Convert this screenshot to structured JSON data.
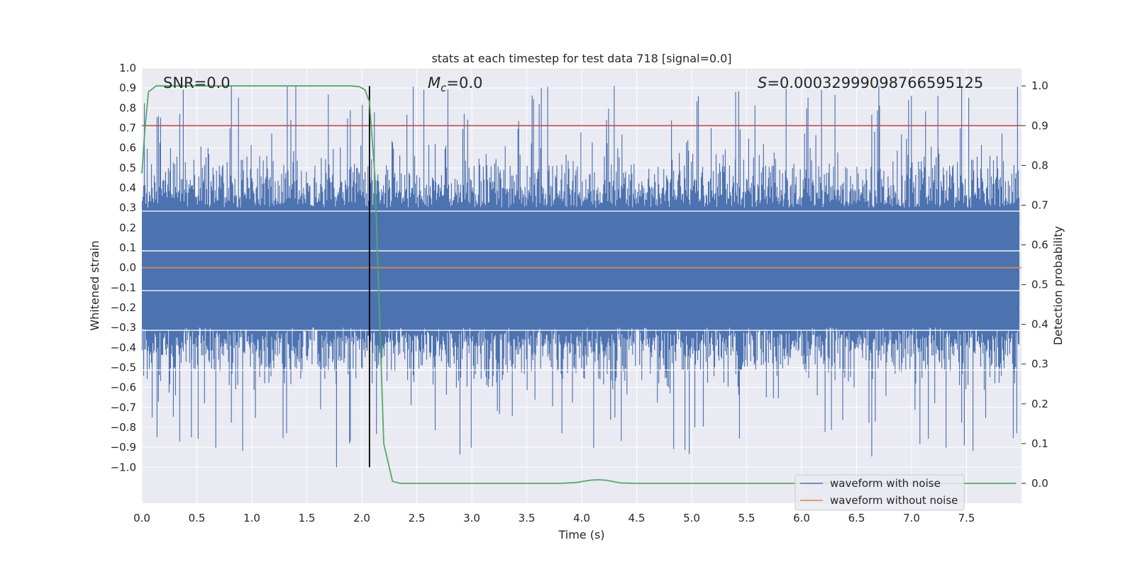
{
  "chart_data": {
    "type": "line",
    "title": "stats at each timestep for test data 718 [signal=0.0]",
    "xlabel": "Time (s)",
    "ylabel": "Whitened strain",
    "ylabel_right": "Detection probability",
    "xlim": [
      0.0,
      8.0
    ],
    "ylim": [
      -1.18,
      1.0
    ],
    "ylim_right": [
      -0.05,
      1.045
    ],
    "x_ticks": [
      "0.0",
      "0.5",
      "1.0",
      "1.5",
      "2.0",
      "2.5",
      "3.0",
      "3.5",
      "4.0",
      "4.5",
      "5.0",
      "5.5",
      "6.0",
      "6.5",
      "7.0",
      "7.5"
    ],
    "y_ticks": [
      "1.0",
      "0.9",
      "0.8",
      "0.7",
      "0.6",
      "0.5",
      "0.4",
      "0.3",
      "0.2",
      "0.1",
      "0.0",
      "−0.1",
      "−0.2",
      "−0.3",
      "−0.4",
      "−0.5",
      "−0.6",
      "−0.7",
      "−0.8",
      "−0.9",
      "−1.0"
    ],
    "y_right_ticks": [
      "1.0",
      "0.9",
      "0.8",
      "0.7",
      "0.6",
      "0.5",
      "0.4",
      "0.3",
      "0.2",
      "0.1",
      "0.0"
    ],
    "annotations": {
      "snr": "SNR=0.0",
      "mc_symbol": "M",
      "mc_subscript": "c",
      "mc_value": "=0.0",
      "s_symbol": "S",
      "s_value": "=0.00032999098766595125"
    },
    "threshold": {
      "value": 0.9,
      "axis": "right",
      "color": "#c44e52"
    },
    "detection_time": 2.07,
    "series": [
      {
        "name": "waveform with noise",
        "color": "#4c72b0",
        "style": "dense noise",
        "peak_max": 0.91,
        "peak_min": -1.0
      },
      {
        "name": "waveform without noise",
        "color": "#dd8452",
        "values": [
          [
            0.0,
            0.0
          ],
          [
            8.0,
            0.0
          ]
        ]
      },
      {
        "name": "detection probability",
        "color": "#55a868",
        "axis": "right",
        "values": [
          [
            0.0,
            0.78
          ],
          [
            0.03,
            0.9
          ],
          [
            0.06,
            0.985
          ],
          [
            0.13,
            1.0
          ],
          [
            1.9,
            1.0
          ],
          [
            1.98,
            0.998
          ],
          [
            2.03,
            0.99
          ],
          [
            2.07,
            0.96
          ],
          [
            2.12,
            0.77
          ],
          [
            2.2,
            0.1
          ],
          [
            2.28,
            0.005
          ],
          [
            2.35,
            0.0
          ],
          [
            3.8,
            0.0
          ],
          [
            3.95,
            0.002
          ],
          [
            4.08,
            0.008
          ],
          [
            4.15,
            0.009
          ],
          [
            4.22,
            0.008
          ],
          [
            4.35,
            0.001
          ],
          [
            4.5,
            0.0
          ],
          [
            7.95,
            0.0
          ]
        ]
      }
    ],
    "extra_gridlines_right": [
      0.685,
      0.585,
      0.485,
      0.385,
      0.285
    ],
    "legend_position": "lower right",
    "colors": {
      "background": "#eaeaf2",
      "grid": "#ffffff",
      "vline": "#000000"
    }
  }
}
